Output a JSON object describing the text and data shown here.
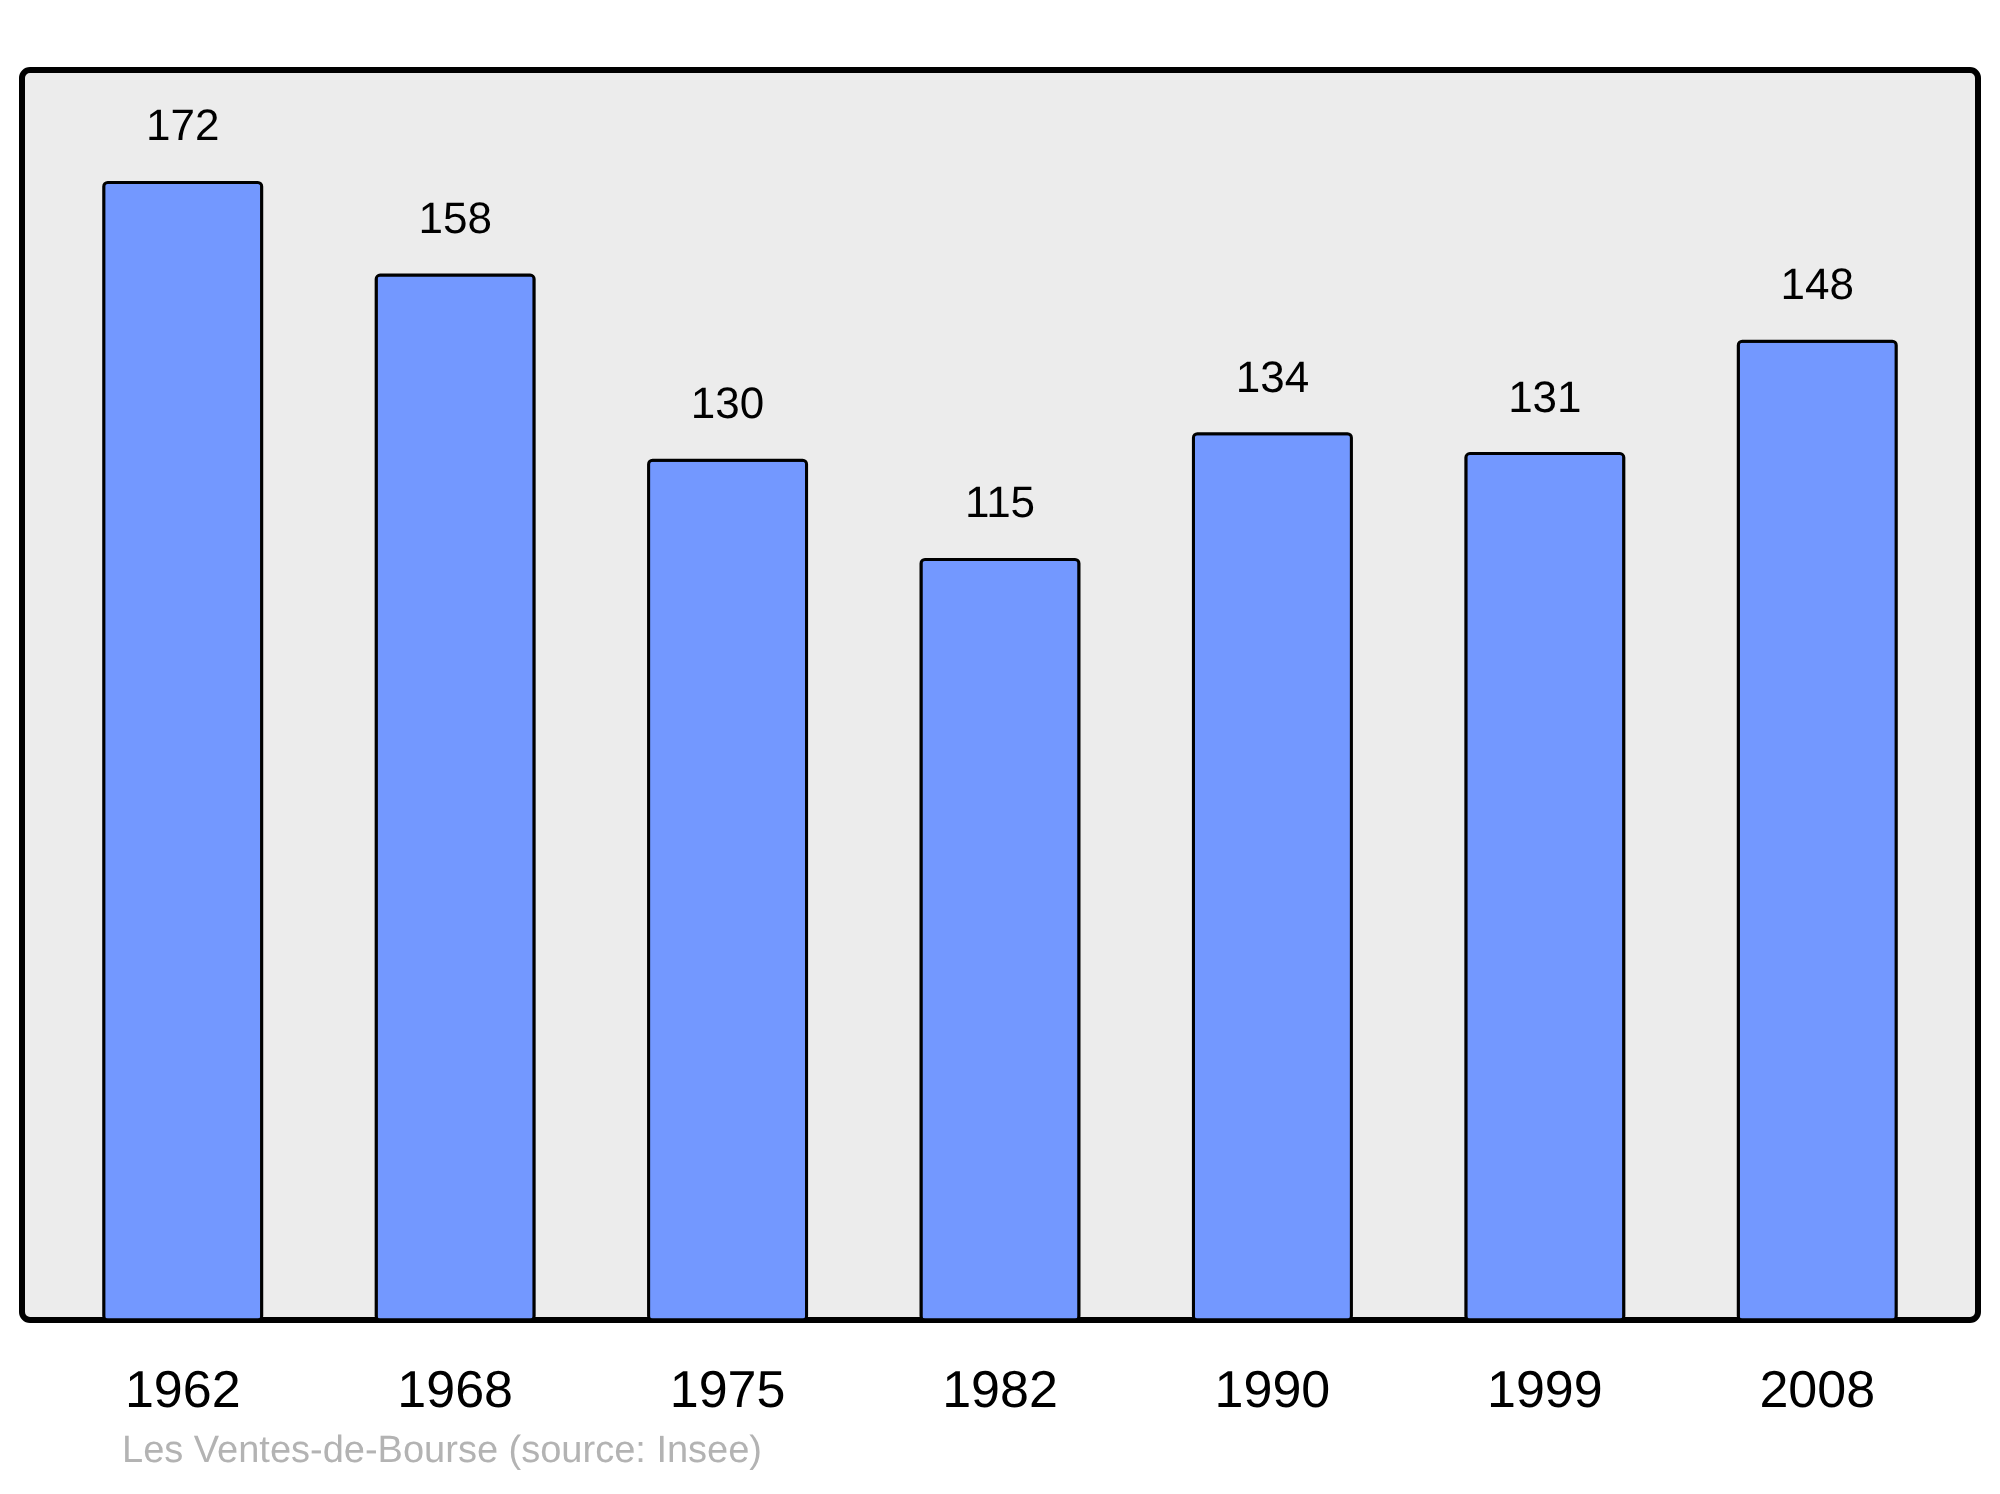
{
  "chart_data": {
    "type": "bar",
    "categories": [
      "1962",
      "1968",
      "1975",
      "1982",
      "1990",
      "1999",
      "2008"
    ],
    "values": [
      172,
      158,
      130,
      115,
      134,
      131,
      148
    ],
    "color": "#7398ff",
    "data_labels": true,
    "ylim": [
      0,
      189
    ],
    "grid": false,
    "annotations": [
      "Les Ventes-de-Bourse    (source: Insee)"
    ]
  }
}
